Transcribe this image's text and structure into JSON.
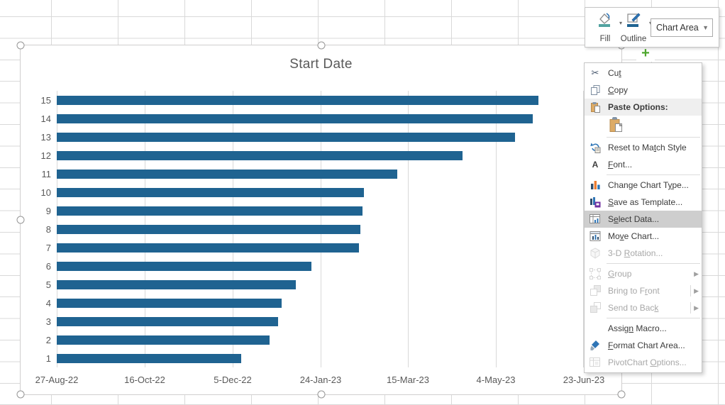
{
  "chart": {
    "chart_data": {
      "type": "bar",
      "orientation": "horizontal",
      "title": "Start Date",
      "categories": [
        "15",
        "14",
        "13",
        "12",
        "11",
        "10",
        "9",
        "8",
        "7",
        "6",
        "5",
        "4",
        "3",
        "2",
        "1"
      ],
      "series": [
        {
          "name": "Start Date",
          "values_days_since_axis_start": [
            274,
            271,
            261,
            231,
            194,
            175,
            174,
            173,
            172,
            145,
            136,
            128,
            126,
            121,
            105
          ]
        }
      ],
      "x_axis": {
        "tick_labels": [
          "27-Aug-22",
          "16-Oct-22",
          "5-Dec-22",
          "24-Jan-23",
          "15-Mar-23",
          "4-May-23",
          "23-Jun-23"
        ],
        "range_days": [
          0,
          300
        ],
        "tick_interval_days": 50
      },
      "ylabel": "",
      "xlabel": "",
      "gridlines": true,
      "legend": "none",
      "bar_color": "#1f6391",
      "text_color": "#595959"
    }
  },
  "mini_toolbar": {
    "fill_label": "Fill",
    "outline_label": "Outline",
    "fill_swatch_color": "#52a3a0",
    "outline_swatch_color": "#1f6391",
    "selector_value": "Chart Area"
  },
  "chart_elements_button": {
    "glyph": "+"
  },
  "context_menu": {
    "items": [
      {
        "id": "cut",
        "icon": "cut",
        "label": "Cu&t"
      },
      {
        "id": "copy",
        "icon": "copy",
        "label": "&Copy"
      },
      {
        "id": "paste-options",
        "icon": "paste",
        "label": "Paste Options:",
        "header": true
      },
      {
        "id": "paste-thumb",
        "type": "paste-thumb",
        "icon": "paste-big"
      },
      {
        "type": "sep"
      },
      {
        "id": "reset-to-match-style",
        "icon": "reset",
        "label": "Reset to Ma&tch Style"
      },
      {
        "id": "font",
        "icon": "font",
        "label": "&Font..."
      },
      {
        "type": "sep"
      },
      {
        "id": "change-chart-type",
        "icon": "chart-type",
        "label": "Change Chart T&ype..."
      },
      {
        "id": "save-as-template",
        "icon": "template",
        "label": "&Save as Template..."
      },
      {
        "id": "select-data",
        "icon": "select-data",
        "label": "S&elect Data...",
        "highlighted": true
      },
      {
        "id": "move-chart",
        "icon": "move-chart",
        "label": "Mo&ve Chart..."
      },
      {
        "id": "3d-rotation",
        "icon": "rotation",
        "label": "3-D &Rotation...",
        "disabled": true
      },
      {
        "type": "sep"
      },
      {
        "id": "group",
        "icon": "group",
        "label": "&Group",
        "disabled": true,
        "arrow": true
      },
      {
        "id": "bring-to-front",
        "icon": "bring-front",
        "label": "Bring to F&ront",
        "disabled": true,
        "arrow": true,
        "divider": true
      },
      {
        "id": "send-to-back",
        "icon": "send-back",
        "label": "Send to Bac&k",
        "disabled": true,
        "arrow": true,
        "divider": true
      },
      {
        "type": "sep"
      },
      {
        "id": "assign-macro",
        "icon": "",
        "label": "Assig&n Macro..."
      },
      {
        "id": "format-chart-area",
        "icon": "format-area",
        "label": "&Format Chart Area..."
      },
      {
        "id": "pivotchart-options",
        "icon": "pivot",
        "label": "PivotChart &Options...",
        "disabled": true
      }
    ]
  }
}
